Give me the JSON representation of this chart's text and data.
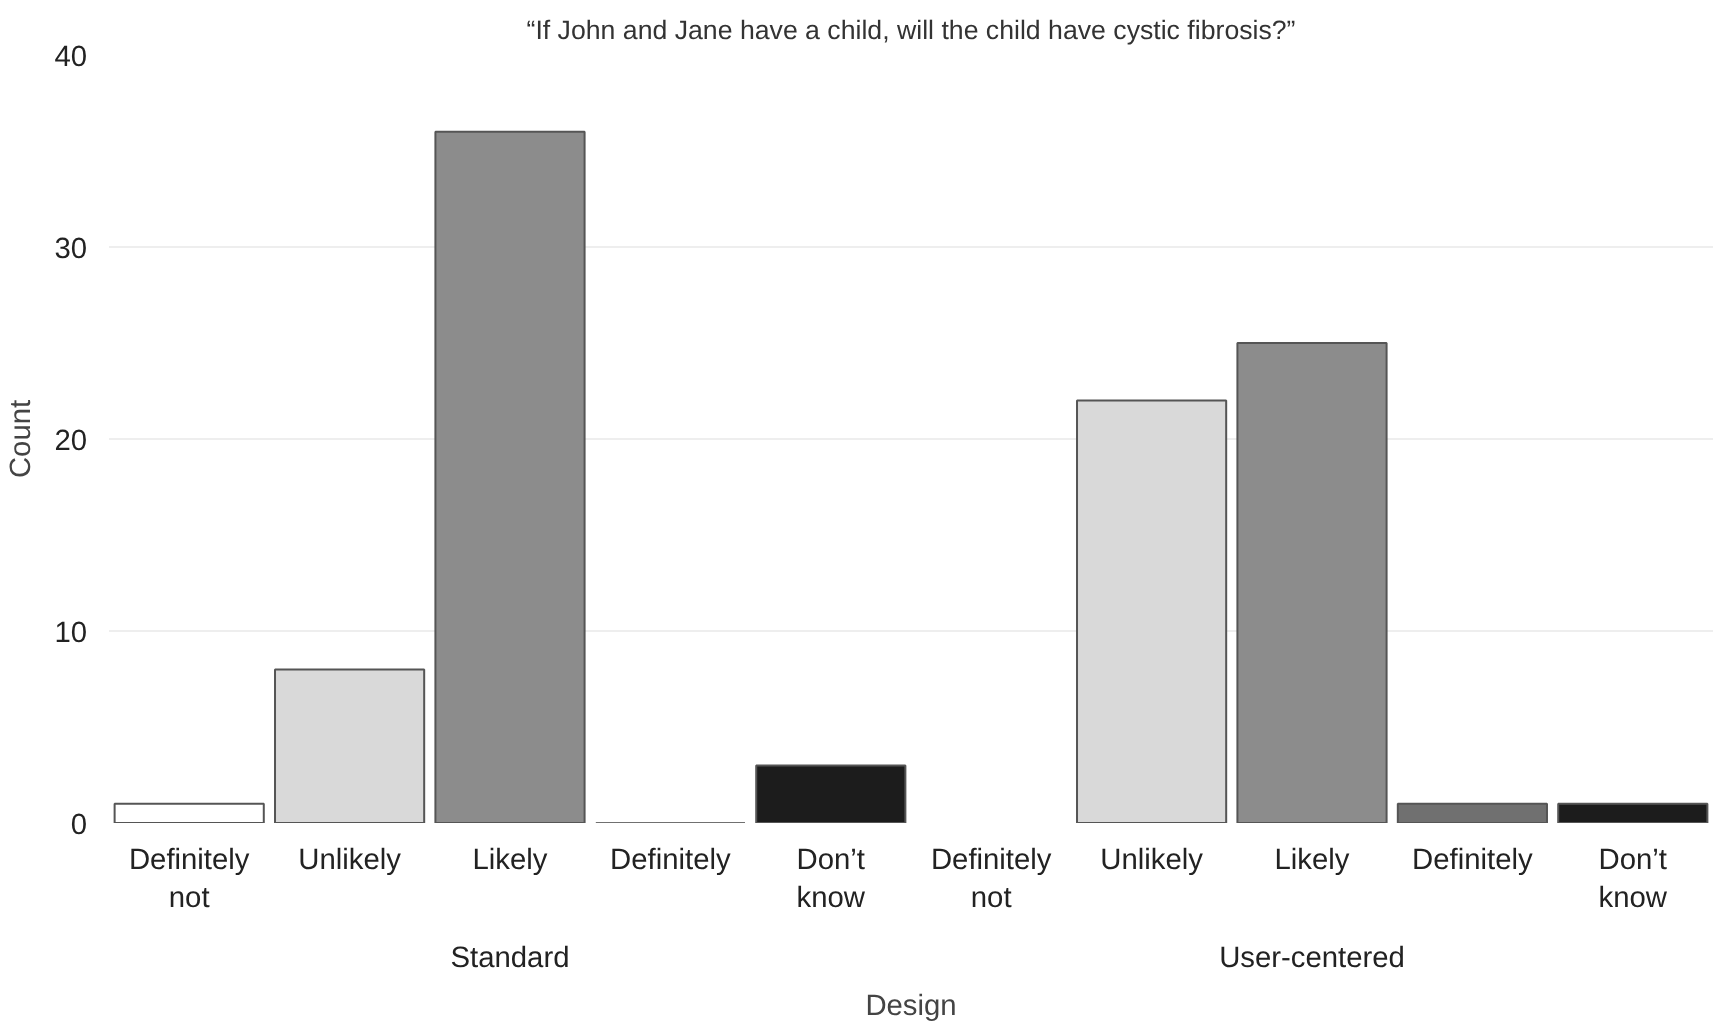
{
  "chart_data": {
    "type": "bar",
    "title": "“If John and Jane have a child, will the child have cystic fibrosis?”",
    "xlabel": "Design",
    "ylabel": "Count",
    "categories": [
      "Definitely\nnot",
      "Unlikely",
      "Likely",
      "Definitely",
      "Don’t\nknow",
      "Definitely\nnot",
      "Unlikely",
      "Likely",
      "Definitely",
      "Don’t\nknow"
    ],
    "values": [
      1,
      8,
      36,
      0,
      3,
      0,
      22,
      25,
      1,
      1
    ],
    "colors": [
      "#ffffff",
      "#d9d9d9",
      "#8c8c8c",
      "#707070",
      "#1c1c1c",
      "#ffffff",
      "#d9d9d9",
      "#8c8c8c",
      "#707070",
      "#1c1c1c"
    ],
    "annotations": [
      "Standard",
      "User-centered"
    ],
    "ylim": [
      0,
      40
    ],
    "yticks": [
      0,
      10,
      20,
      30,
      40
    ],
    "grid": "y"
  }
}
